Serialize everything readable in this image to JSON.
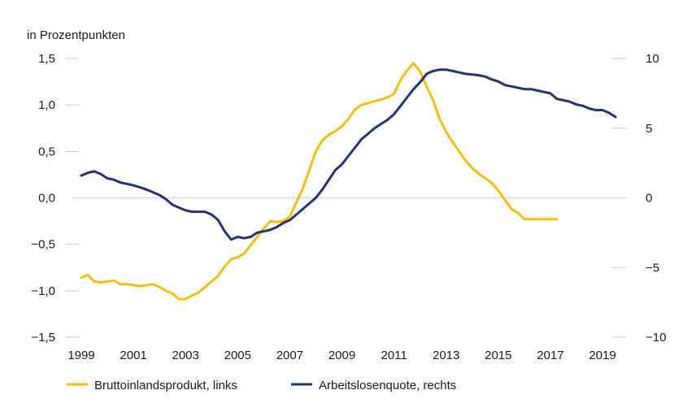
{
  "chart_data": {
    "type": "line",
    "unit_label": "in Prozentpunkten",
    "x_ticks": [
      "1999",
      "2001",
      "2003",
      "2005",
      "2007",
      "2009",
      "2011",
      "2013",
      "2015",
      "2017",
      "2019"
    ],
    "y_left": {
      "ticks": [
        "1,5",
        "1,0",
        "0,5",
        "0,0",
        "−0,5",
        "−1,0",
        "−1,5"
      ],
      "ylim": [
        -1.5,
        1.5
      ]
    },
    "y_right": {
      "ticks": [
        "10",
        "5",
        "0",
        "−5",
        "−10"
      ],
      "ylim": [
        -10,
        10
      ]
    },
    "grid": "horizontal zero line only",
    "legend_position": "bottom-left",
    "series": [
      {
        "name": "Bruttoinlandsprodukt, links",
        "axis": "left",
        "color": "#f5bd12",
        "x": [
          1999.0,
          1999.25,
          1999.5,
          1999.75,
          2000.0,
          2000.25,
          2000.5,
          2000.75,
          2001.0,
          2001.25,
          2001.5,
          2001.75,
          2002.0,
          2002.25,
          2002.5,
          2002.75,
          2003.0,
          2003.25,
          2003.5,
          2003.75,
          2004.0,
          2004.25,
          2004.5,
          2004.75,
          2005.0,
          2005.25,
          2005.5,
          2005.75,
          2006.0,
          2006.25,
          2006.5,
          2006.75,
          2007.0,
          2007.25,
          2007.5,
          2007.75,
          2008.0,
          2008.25,
          2008.5,
          2008.75,
          2009.0,
          2009.25,
          2009.5,
          2009.75,
          2010.0,
          2010.25,
          2010.5,
          2010.75,
          2011.0,
          2011.25,
          2011.5,
          2011.75,
          2012.0,
          2012.25,
          2012.5,
          2012.75,
          2013.0,
          2013.25,
          2013.5,
          2013.75,
          2014.0,
          2014.25,
          2014.5,
          2014.75,
          2015.0,
          2015.25,
          2015.5,
          2015.75,
          2016.0,
          2016.25,
          2016.5,
          2016.75,
          2017.0,
          2017.25
        ],
        "values": [
          -0.86,
          -0.83,
          -0.9,
          -0.91,
          -0.9,
          -0.89,
          -0.93,
          -0.93,
          -0.94,
          -0.95,
          -0.94,
          -0.93,
          -0.96,
          -1.0,
          -1.03,
          -1.09,
          -1.09,
          -1.05,
          -1.02,
          -0.96,
          -0.9,
          -0.84,
          -0.74,
          -0.66,
          -0.64,
          -0.6,
          -0.51,
          -0.42,
          -0.33,
          -0.25,
          -0.26,
          -0.25,
          -0.2,
          -0.05,
          0.1,
          0.3,
          0.5,
          0.62,
          0.68,
          0.72,
          0.77,
          0.85,
          0.95,
          1.0,
          1.02,
          1.04,
          1.06,
          1.08,
          1.12,
          1.27,
          1.37,
          1.45,
          1.36,
          1.2,
          1.05,
          0.85,
          0.71,
          0.6,
          0.5,
          0.4,
          0.32,
          0.26,
          0.21,
          0.16,
          0.08,
          -0.02,
          -0.12,
          -0.16,
          -0.23,
          -0.23,
          -0.23,
          -0.23,
          -0.23,
          -0.23
        ]
      },
      {
        "name": "Arbeitslosenquote, rechts",
        "axis": "right",
        "color": "#243373",
        "x": [
          1999.0,
          1999.25,
          1999.5,
          1999.75,
          2000.0,
          2000.25,
          2000.5,
          2000.75,
          2001.0,
          2001.25,
          2001.5,
          2001.75,
          2002.0,
          2002.25,
          2002.5,
          2002.75,
          2003.0,
          2003.25,
          2003.5,
          2003.75,
          2004.0,
          2004.25,
          2004.5,
          2004.75,
          2005.0,
          2005.25,
          2005.5,
          2005.75,
          2006.0,
          2006.25,
          2006.5,
          2006.75,
          2007.0,
          2007.25,
          2007.5,
          2007.75,
          2008.0,
          2008.25,
          2008.5,
          2008.75,
          2009.0,
          2009.25,
          2009.5,
          2009.75,
          2010.0,
          2010.25,
          2010.5,
          2010.75,
          2011.0,
          2011.25,
          2011.5,
          2011.75,
          2012.0,
          2012.25,
          2012.5,
          2012.75,
          2013.0,
          2013.25,
          2013.5,
          2013.75,
          2014.0,
          2014.25,
          2014.5,
          2014.75,
          2015.0,
          2015.25,
          2015.5,
          2015.75,
          2016.0,
          2016.25,
          2016.5,
          2016.75,
          2017.0,
          2017.25,
          2017.5,
          2017.75,
          2018.0,
          2018.25,
          2018.5,
          2018.75,
          2019.0,
          2019.25,
          2019.5
        ],
        "values": [
          1.6,
          1.8,
          1.9,
          1.7,
          1.4,
          1.3,
          1.1,
          1.0,
          0.9,
          0.75,
          0.6,
          0.4,
          0.2,
          -0.1,
          -0.5,
          -0.7,
          -0.9,
          -1.0,
          -1.0,
          -1.0,
          -1.2,
          -1.6,
          -2.4,
          -3.0,
          -2.8,
          -2.9,
          -2.8,
          -2.5,
          -2.4,
          -2.3,
          -2.1,
          -1.8,
          -1.6,
          -1.2,
          -0.8,
          -0.4,
          0.0,
          0.6,
          1.3,
          2.0,
          2.4,
          3.0,
          3.6,
          4.2,
          4.6,
          5.0,
          5.3,
          5.6,
          6.0,
          6.6,
          7.2,
          7.8,
          8.3,
          8.9,
          9.1,
          9.2,
          9.2,
          9.1,
          9.0,
          8.9,
          8.85,
          8.8,
          8.7,
          8.5,
          8.35,
          8.1,
          8.0,
          7.9,
          7.8,
          7.8,
          7.7,
          7.6,
          7.5,
          7.1,
          7.0,
          6.9,
          6.7,
          6.6,
          6.4,
          6.3,
          6.3,
          6.1,
          5.8
        ]
      }
    ]
  }
}
